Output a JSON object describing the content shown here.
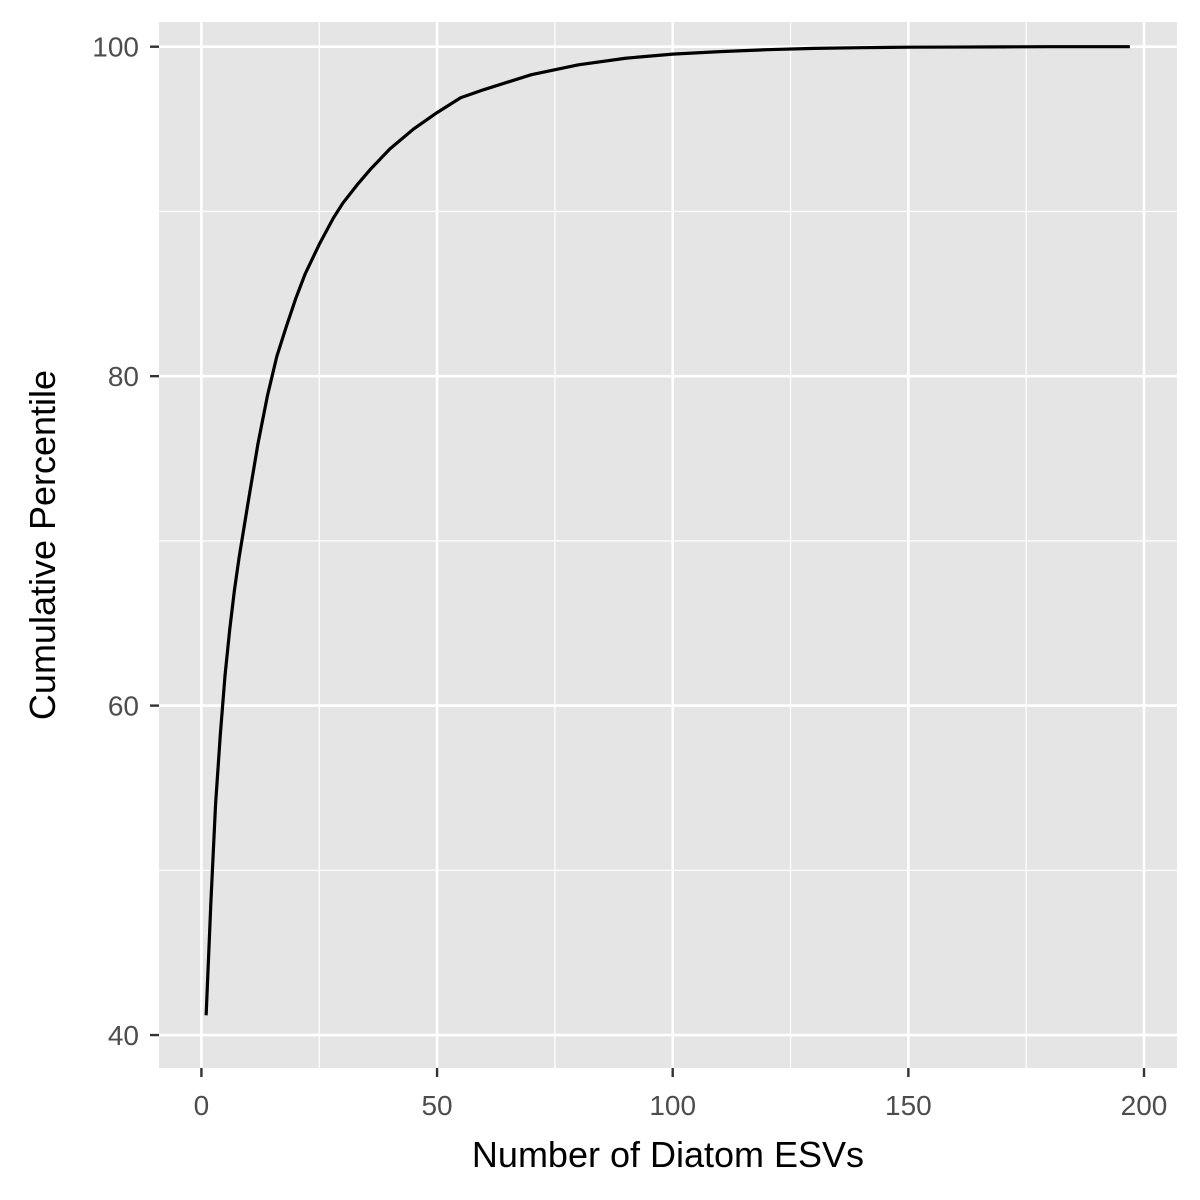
{
  "chart_data": {
    "type": "line",
    "title": "",
    "xlabel": "Number of Diatom ESVs",
    "ylabel": "Cumulative Percentile",
    "xlim": [
      -9,
      207
    ],
    "ylim": [
      38,
      101.5
    ],
    "x_ticks": [
      0,
      50,
      100,
      150,
      200
    ],
    "x_tick_labels": [
      "0",
      "50",
      "100",
      "150",
      "200"
    ],
    "y_ticks": [
      40,
      60,
      80,
      100
    ],
    "y_tick_labels": [
      "40",
      "60",
      "80",
      "100"
    ],
    "x_minor_ticks": [
      25,
      75,
      125,
      175
    ],
    "y_minor_ticks": [
      50,
      70,
      90
    ],
    "grid": true,
    "legend": "none",
    "colors": {
      "panel": "#e5e5e5",
      "grid": "#ffffff",
      "line": "#000000",
      "tick": "#333333"
    },
    "series": [
      {
        "x": [
          1,
          2,
          3,
          4,
          5,
          6,
          7,
          8,
          10,
          12,
          14,
          16,
          18,
          20,
          22,
          25,
          28,
          30,
          33,
          36,
          40,
          45,
          50,
          55,
          60,
          70,
          80,
          90,
          100,
          110,
          120,
          130,
          140,
          150,
          160,
          170,
          180,
          190,
          197
        ],
        "values": [
          41.2,
          48.0,
          54.0,
          58.2,
          61.8,
          64.6,
          67.0,
          69.0,
          72.5,
          75.9,
          78.8,
          81.2,
          83.0,
          84.7,
          86.2,
          88.0,
          89.6,
          90.5,
          91.6,
          92.6,
          93.8,
          95.0,
          96.0,
          96.9,
          97.4,
          98.3,
          98.9,
          99.3,
          99.55,
          99.7,
          99.82,
          99.9,
          99.94,
          99.97,
          99.98,
          99.99,
          100.0,
          100.0,
          100.0
        ]
      }
    ]
  }
}
